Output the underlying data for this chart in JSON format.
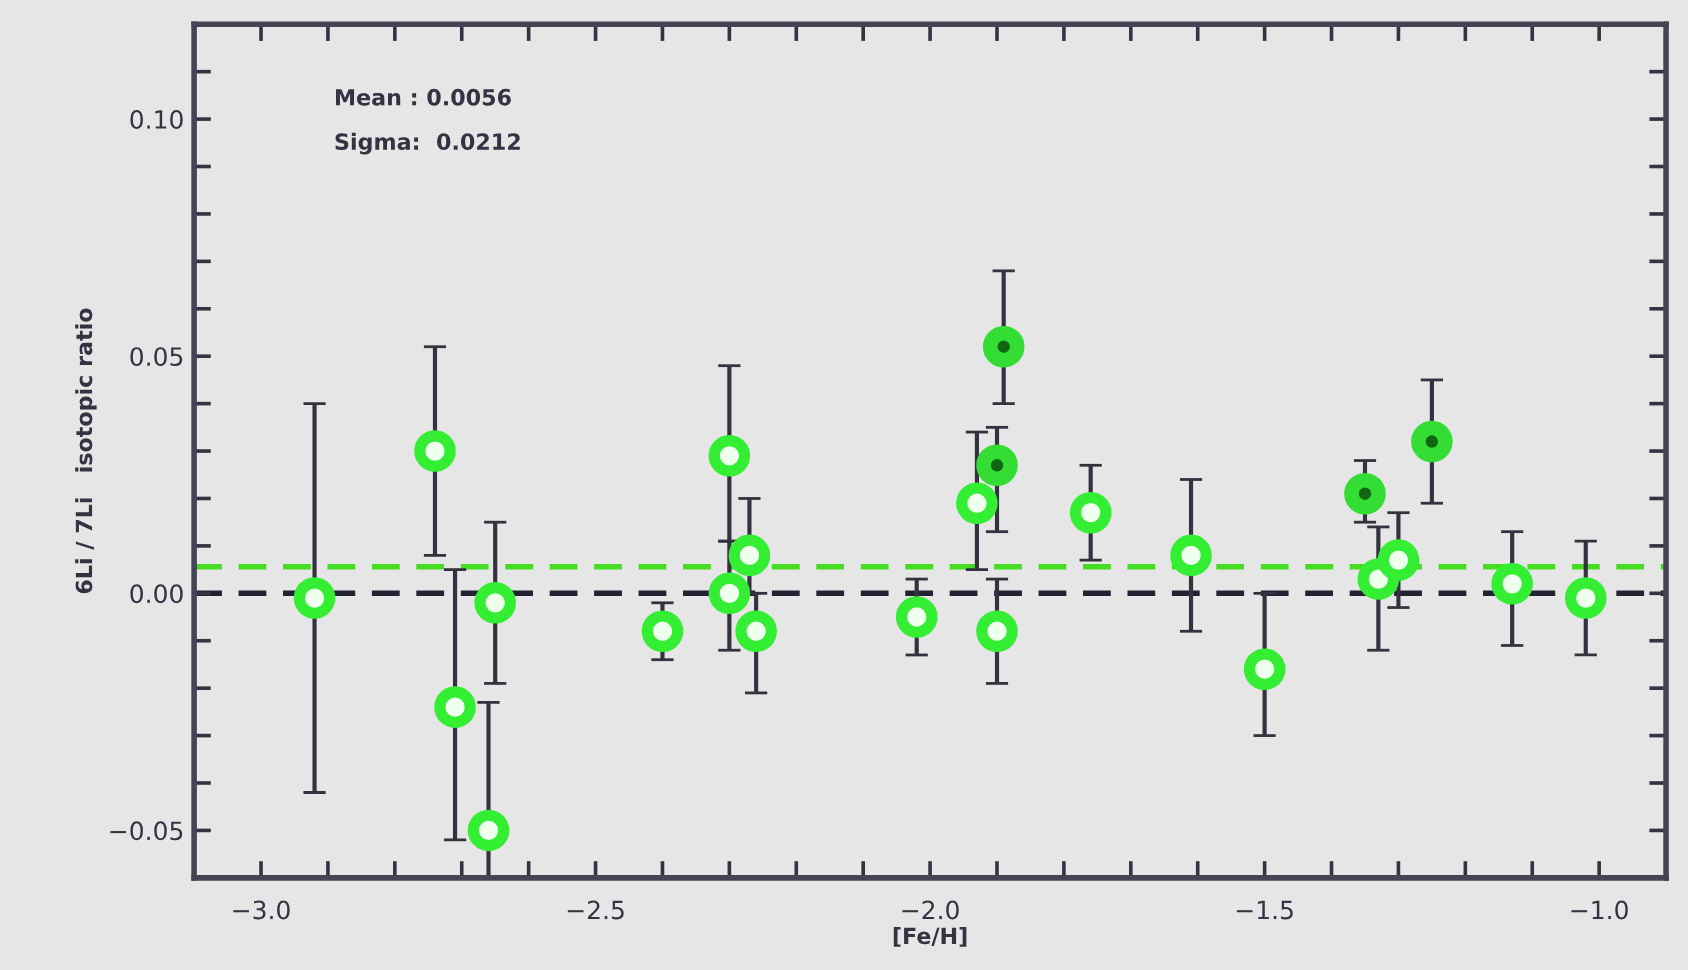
{
  "chart_data": {
    "type": "scatter",
    "xlabel": "[Fe/H]",
    "ylabel": "6Li / 7Li   isotopic ratio",
    "annotations": [
      "Mean : 0.0056",
      "Sigma:  0.0212"
    ],
    "xlim": [
      -3.1,
      -0.9
    ],
    "ylim": [
      -0.06,
      0.12
    ],
    "xticks": [
      {
        "value": -3.0,
        "label": "−3.0"
      },
      {
        "value": -2.9,
        "label": null
      },
      {
        "value": -2.8,
        "label": null
      },
      {
        "value": -2.7,
        "label": null
      },
      {
        "value": -2.6,
        "label": null
      },
      {
        "value": -2.5,
        "label": "−2.5"
      },
      {
        "value": -2.4,
        "label": null
      },
      {
        "value": -2.3,
        "label": null
      },
      {
        "value": -2.2,
        "label": null
      },
      {
        "value": -2.1,
        "label": null
      },
      {
        "value": -2.0,
        "label": "−2.0"
      },
      {
        "value": -1.9,
        "label": null
      },
      {
        "value": -1.8,
        "label": null
      },
      {
        "value": -1.7,
        "label": null
      },
      {
        "value": -1.6,
        "label": null
      },
      {
        "value": -1.5,
        "label": "−1.5"
      },
      {
        "value": -1.4,
        "label": null
      },
      {
        "value": -1.3,
        "label": null
      },
      {
        "value": -1.2,
        "label": null
      },
      {
        "value": -1.1,
        "label": null
      },
      {
        "value": -1.0,
        "label": "−1.0"
      }
    ],
    "yticks": [
      {
        "value": -0.05,
        "label": "−0.05"
      },
      {
        "value": -0.04,
        "label": null
      },
      {
        "value": -0.03,
        "label": null
      },
      {
        "value": -0.02,
        "label": null
      },
      {
        "value": -0.01,
        "label": null
      },
      {
        "value": 0.0,
        "label": "0.00"
      },
      {
        "value": 0.01,
        "label": null
      },
      {
        "value": 0.02,
        "label": null
      },
      {
        "value": 0.03,
        "label": null
      },
      {
        "value": 0.04,
        "label": null
      },
      {
        "value": 0.05,
        "label": "0.05"
      },
      {
        "value": 0.06,
        "label": null
      },
      {
        "value": 0.07,
        "label": null
      },
      {
        "value": 0.08,
        "label": null
      },
      {
        "value": 0.09,
        "label": null
      },
      {
        "value": 0.1,
        "label": "0.10"
      },
      {
        "value": 0.11,
        "label": null
      }
    ],
    "marker": "circle",
    "grid": false,
    "legend": false,
    "ref_lines": [
      {
        "axis": "y",
        "value": 0.0,
        "color": "#222233",
        "line_style": "dashed"
      },
      {
        "axis": "y",
        "value": 0.0056,
        "color": "#44dd22",
        "line_style": "dashed"
      }
    ],
    "series": [
      {
        "color": "#33ee33",
        "x": [
          -2.92,
          -2.74,
          -2.71,
          -2.66,
          -2.65,
          -2.4,
          -2.3,
          -2.3,
          -2.27,
          -2.26,
          -2.02,
          -1.93,
          -1.9,
          -1.76,
          -1.61,
          -1.5,
          -1.33,
          -1.3,
          -1.13,
          -1.02
        ],
        "values": [
          -0.001,
          0.03,
          -0.024,
          -0.05,
          -0.002,
          -0.008,
          0.029,
          0.0,
          0.008,
          -0.008,
          -0.005,
          0.019,
          -0.008,
          0.017,
          0.008,
          -0.016,
          0.003,
          0.007,
          0.002,
          -0.001
        ],
        "errors": [
          [
            -0.042,
            0.04
          ],
          [
            0.008,
            0.052
          ],
          [
            -0.052,
            0.005
          ],
          [
            -0.06,
            -0.023
          ],
          [
            -0.019,
            0.015
          ],
          [
            -0.014,
            -0.002
          ],
          [
            0.011,
            0.048
          ],
          [
            -0.012,
            0.011
          ],
          [
            0.0,
            0.02
          ],
          [
            -0.021,
            0.0
          ],
          [
            -0.013,
            0.003
          ],
          [
            0.005,
            0.034
          ],
          [
            -0.019,
            0.003
          ],
          [
            0.007,
            0.027
          ],
          [
            -0.008,
            0.024
          ],
          [
            -0.03,
            0.0
          ],
          [
            -0.012,
            0.014
          ],
          [
            -0.003,
            0.017
          ],
          [
            -0.011,
            0.013
          ],
          [
            -0.013,
            0.011
          ]
        ]
      },
      {
        "color": "#33dd33",
        "x": [
          -1.89,
          -1.9,
          -1.35,
          -1.25
        ],
        "values": [
          0.052,
          0.027,
          0.021,
          0.032
        ],
        "errors": [
          [
            0.04,
            0.068
          ],
          [
            0.013,
            0.035
          ],
          [
            0.015,
            0.028
          ],
          [
            0.019,
            0.045
          ]
        ]
      }
    ]
  }
}
